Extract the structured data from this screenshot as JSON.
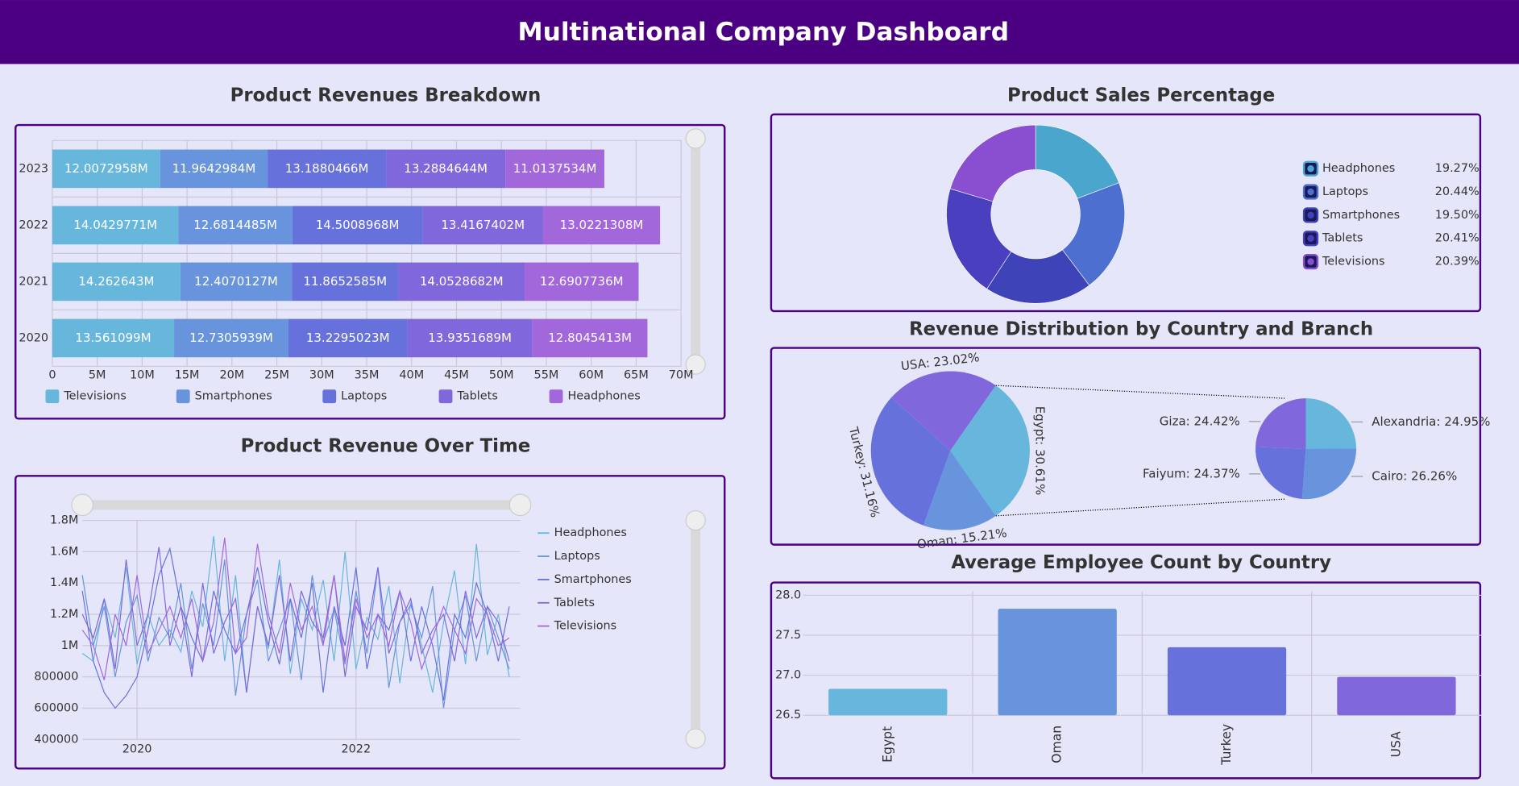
{
  "header": {
    "title": "Multinational Company Dashboard"
  },
  "chart_data": [
    {
      "type": "bar",
      "orientation": "horizontal",
      "stacked": true,
      "title": "Product Revenues Breakdown",
      "categories": [
        "2020",
        "2021",
        "2022",
        "2023"
      ],
      "series": [
        {
          "name": "Televisions",
          "color": "#67b7dc",
          "values": [
            13561099,
            14262643,
            14042977.1,
            12007295.8
          ],
          "value_labels": [
            "13.561099M",
            "14.262643M",
            "14.0429771M",
            "12.0072958M"
          ]
        },
        {
          "name": "Smartphones",
          "color": "#6794dc",
          "values": [
            12730593.9,
            12407012.7,
            12681448.5,
            11964298.4
          ],
          "value_labels": [
            "12.7305939M",
            "12.4070127M",
            "12.6814485M",
            "11.9642984M"
          ]
        },
        {
          "name": "Laptops",
          "color": "#6771dc",
          "values": [
            13229502.3,
            11865258.5,
            14500896.8,
            13188046.6
          ],
          "value_labels": [
            "13.2295023M",
            "11.8652585M",
            "14.5008968M",
            "13.1880466M"
          ]
        },
        {
          "name": "Tablets",
          "color": "#8067dc",
          "values": [
            13935168.9,
            14052868.2,
            13416740.2,
            13288464.4
          ],
          "value_labels": [
            "13.9351689M",
            "14.0528682M",
            "13.4167402M",
            "13.2884644M"
          ]
        },
        {
          "name": "Headphones",
          "color": "#a367dc",
          "values": [
            12804541.3,
            12690773.6,
            13022130.8,
            11013753.4
          ],
          "value_labels": [
            "12.8045413M",
            "12.6907736M",
            "13.0221308M",
            "11.0137534M"
          ]
        }
      ],
      "xlim": [
        0,
        70000000
      ],
      "xticks": [
        0,
        {
          "value": 5000000,
          "label": "5M"
        },
        {
          "value": 10000000,
          "label": "10M"
        },
        {
          "value": 15000000,
          "label": "15M"
        },
        {
          "value": 20000000,
          "label": "20M"
        },
        {
          "value": 25000000,
          "label": "25M"
        },
        {
          "value": 30000000,
          "label": "30M"
        },
        {
          "value": 35000000,
          "label": "35M"
        },
        {
          "value": 40000000,
          "label": "40M"
        },
        {
          "value": 45000000,
          "label": "45M"
        },
        {
          "value": 50000000,
          "label": "50M"
        },
        {
          "value": 55000000,
          "label": "55M"
        },
        {
          "value": 60000000,
          "label": "60M"
        },
        {
          "value": 65000000,
          "label": "65M"
        },
        {
          "value": 70000000,
          "label": "70M"
        }
      ],
      "grid": true,
      "legend": "bottom"
    },
    {
      "type": "line",
      "title": "Product Revenue Over Time",
      "x": [
        2019.5,
        2019.6,
        2019.7,
        2019.8,
        2019.9,
        2020.0,
        2020.1,
        2020.2,
        2020.3,
        2020.4,
        2020.5,
        2020.6,
        2020.7,
        2020.8,
        2020.9,
        2021.0,
        2021.1,
        2021.2,
        2021.3,
        2021.4,
        2021.5,
        2021.6,
        2021.7,
        2021.8,
        2021.9,
        2022.0,
        2022.1,
        2022.2,
        2022.3,
        2022.4,
        2022.5,
        2022.6,
        2022.7,
        2022.8,
        2022.9,
        2023.0,
        2023.1,
        2023.2,
        2023.3,
        2023.4
      ],
      "series": [
        {
          "name": "Headphones",
          "color": "#67b7dc",
          "values": [
            950000,
            900000,
            1300000,
            1050000,
            1500000,
            880000,
            1200000,
            1000000,
            1100000,
            960000,
            1350000,
            1120000,
            1700000,
            900000,
            1450000,
            700000,
            1250000,
            980000,
            1550000,
            820000,
            1300000,
            1100000,
            1420000,
            900000,
            1600000,
            850000,
            1180000,
            1040000,
            1380000,
            760000,
            1280000,
            1000000,
            700000,
            1150000,
            1480000,
            880000,
            1650000,
            940000,
            1200000,
            800000
          ]
        },
        {
          "name": "Laptops",
          "color": "#6794dc",
          "values": [
            1450000,
            1000000,
            1250000,
            800000,
            1150000,
            1320000,
            900000,
            1180000,
            1050000,
            1400000,
            850000,
            1270000,
            1000000,
            1550000,
            680000,
            1200000,
            1420000,
            900000,
            1100000,
            1300000,
            780000,
            1450000,
            1020000,
            1230000,
            880000,
            1350000,
            950000,
            1500000,
            730000,
            1150000,
            1260000,
            1050000,
            1380000,
            600000,
            1100000,
            1320000,
            900000,
            1250000,
            1050000,
            850000
          ]
        },
        {
          "name": "Smartphones",
          "color": "#6771dc",
          "values": [
            1350000,
            900000,
            700000,
            600000,
            680000,
            800000,
            1100000,
            1450000,
            1620000,
            1250000,
            1050000,
            900000,
            1350000,
            1100000,
            950000,
            1200000,
            1500000,
            1150000,
            880000,
            1300000,
            1050000,
            1400000,
            700000,
            1250000,
            1000000,
            1500000,
            850000,
            1200000,
            1100000,
            1350000,
            900000,
            1250000,
            1000000,
            650000,
            1200000,
            1050000,
            1400000,
            1200000,
            900000,
            1250000
          ]
        },
        {
          "name": "Tablets",
          "color": "#8067dc",
          "values": [
            1200000,
            1050000,
            1300000,
            850000,
            1550000,
            1000000,
            1200000,
            1630000,
            1000000,
            1250000,
            800000,
            1400000,
            950000,
            1150000,
            1300000,
            700000,
            1250000,
            1000000,
            1450000,
            900000,
            1350000,
            1150000,
            1050000,
            1450000,
            800000,
            1250000,
            1100000,
            1500000,
            950000,
            1150000,
            1300000,
            950000,
            1100000,
            1200000,
            900000,
            1350000,
            1050000,
            1250000,
            1150000,
            900000
          ]
        },
        {
          "name": "Televisions",
          "color": "#a367dc",
          "values": [
            1100000,
            1000000,
            780000,
            1200000,
            1000000,
            1450000,
            950000,
            1100000,
            1250000,
            1050000,
            1300000,
            900000,
            1150000,
            1690000,
            950000,
            1050000,
            1650000,
            1200000,
            950000,
            1400000,
            1100000,
            1250000,
            1000000,
            1450000,
            900000,
            1300000,
            1050000,
            1200000,
            1000000,
            1350000,
            1150000,
            850000,
            1050000,
            1250000,
            1100000,
            950000,
            1300000,
            1200000,
            1000000,
            1050000
          ]
        }
      ],
      "xlim": [
        2019.5,
        2023.5
      ],
      "xticks": [
        2020,
        2022
      ],
      "ylim": [
        400000,
        1800000
      ],
      "yticks": [
        400000,
        600000,
        800000,
        {
          "value": 1000000,
          "label": "1M"
        },
        {
          "value": 1200000,
          "label": "1.2M"
        },
        {
          "value": 1400000,
          "label": "1.4M"
        },
        {
          "value": 1600000,
          "label": "1.6M"
        },
        {
          "value": 1800000,
          "label": "1.8M"
        }
      ],
      "grid": true,
      "legend": "right"
    },
    {
      "type": "donut",
      "title": "Product Sales Percentage",
      "categories": [
        "Headphones",
        "Laptops",
        "Smartphones",
        "Tablets",
        "Televisions"
      ],
      "values": [
        19.27,
        20.44,
        19.5,
        20.41,
        20.39
      ],
      "value_labels": [
        "19.27%",
        "20.44%",
        "19.50%",
        "20.41%",
        "20.39%"
      ],
      "colors": [
        "#4aa6cc",
        "#4c6fd0",
        "#3f43b8",
        "#4a3fbf",
        "#8a4fd0"
      ],
      "legend": "right"
    },
    {
      "type": "pie",
      "title": "Revenue Distribution by Country and Branch",
      "labels": [
        "USA: 23.02%",
        "Egypt: 30.61%",
        "Oman: 15.21%",
        "Turkey: 31.16%"
      ],
      "values": [
        23.02,
        30.61,
        15.21,
        31.16
      ],
      "colors": [
        "#8067dc",
        "#67b7dc",
        "#6794dc",
        "#6771dc"
      ],
      "breakdown": {
        "of": 1,
        "labels": [
          "Alexandria: 24.95%",
          "Cairo: 26.26%",
          "Faiyum: 24.37%",
          "Giza: 24.42%"
        ],
        "values": [
          24.95,
          26.26,
          24.37,
          24.42
        ],
        "colors": [
          "#67b7dc",
          "#6794dc",
          "#6771dc",
          "#8067dc"
        ]
      }
    },
    {
      "type": "bar",
      "orientation": "vertical",
      "title": "Average Employee Count by Country",
      "categories": [
        "Egypt",
        "Oman",
        "Turkey",
        "USA"
      ],
      "values": [
        26.83,
        27.83,
        27.35,
        26.98
      ],
      "colors": [
        "#67b7dc",
        "#6794dc",
        "#6771dc",
        "#8067dc"
      ],
      "ylim": [
        26.5,
        28.05
      ],
      "yticks": [
        26.5,
        {
          "value": 27,
          "label": "27.0"
        },
        27.5,
        {
          "value": 28,
          "label": "28.0"
        }
      ],
      "grid": true
    }
  ]
}
